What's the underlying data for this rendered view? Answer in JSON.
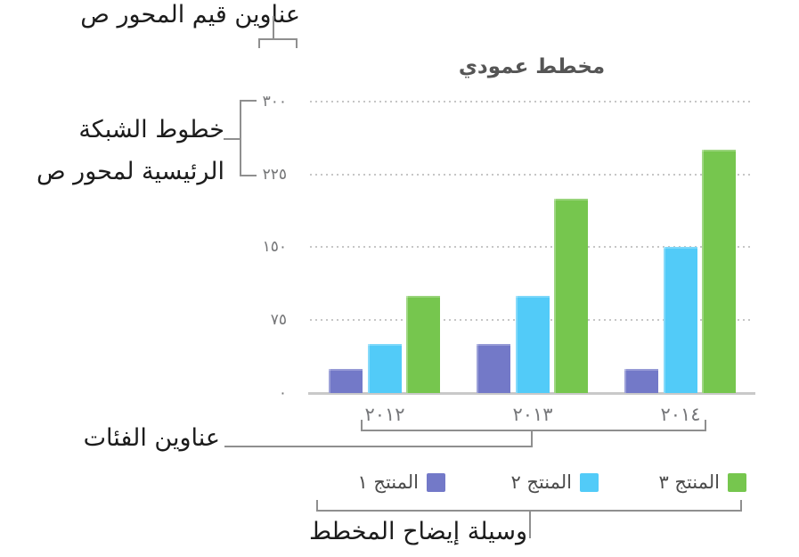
{
  "annotations": {
    "y_axis_values_label": "عناوين قيم المحور ص",
    "gridlines_label_line1": "خطوط الشبكة",
    "gridlines_label_line2": "الرئيسية لمحور ص",
    "categories_label": "عناوين الفئات",
    "legend_label": "وسيلة إيضاح المخطط"
  },
  "chart_data": {
    "type": "bar",
    "title": "مخطط عمودي",
    "direction": "rtl",
    "categories": [
      "٢٠١٢",
      "٢٠١٣",
      "٢٠١٤"
    ],
    "series": [
      {
        "name": "المنتج ١",
        "color": "#7379c8",
        "values": [
          25,
          50,
          25
        ]
      },
      {
        "name": "المنتج ٢",
        "color": "#52cbf8",
        "values": [
          50,
          100,
          150
        ]
      },
      {
        "name": "المنتج ٣",
        "color": "#76c64e",
        "values": [
          100,
          200,
          250
        ]
      }
    ],
    "yticks": [
      {
        "label": "٠",
        "value": 0
      },
      {
        "label": "٧٥",
        "value": 75
      },
      {
        "label": "١٥٠",
        "value": 150
      },
      {
        "label": "٢٢٥",
        "value": 225
      },
      {
        "label": "٣٠٠",
        "value": 300
      }
    ],
    "ylim": [
      0,
      300
    ],
    "grid": "dotted-horizontal-major",
    "legend_position": "bottom"
  },
  "colors": {
    "callout_line": "#8f8f8f",
    "gridline": "#c6c6c6",
    "baseline": "#c9c9c9",
    "title_text": "#555555",
    "axis_text": "#76777a",
    "legend_text": "#4c4c4c",
    "annotation_text": "#1c1c1c"
  }
}
